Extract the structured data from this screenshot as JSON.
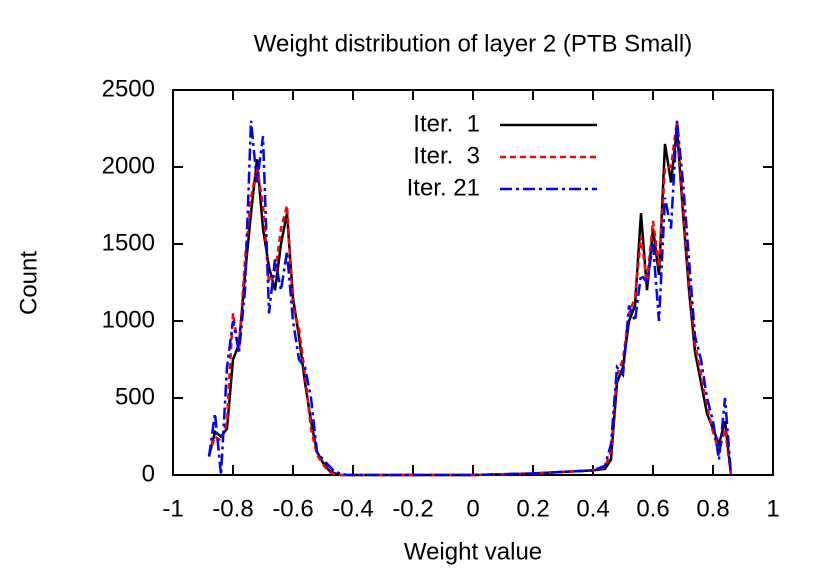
{
  "chart_data": {
    "type": "line",
    "title": "Weight distribution of layer 2 (PTB Small)",
    "xlabel": "Weight value",
    "ylabel": "Count",
    "x": [
      -0.88,
      -0.86,
      -0.84,
      -0.82,
      -0.8,
      -0.78,
      -0.76,
      -0.74,
      -0.72,
      -0.7,
      -0.68,
      -0.66,
      -0.64,
      -0.62,
      -0.6,
      -0.58,
      -0.56,
      -0.54,
      -0.52,
      -0.5,
      -0.48,
      -0.46,
      -0.44,
      -0.42,
      -0.4,
      0,
      0.1,
      0.2,
      0.3,
      0.4,
      0.44,
      0.46,
      0.48,
      0.5,
      0.52,
      0.54,
      0.56,
      0.58,
      0.6,
      0.62,
      0.64,
      0.66,
      0.68,
      0.7,
      0.72,
      0.74,
      0.76,
      0.78,
      0.8,
      0.82,
      0.84,
      0.86
    ],
    "series": [
      {
        "name": "Iter.  1",
        "color": "#000000",
        "dash": "solid",
        "values": [
          120,
          280,
          250,
          300,
          750,
          850,
          1300,
          1700,
          2050,
          1600,
          1350,
          1200,
          1500,
          1700,
          1150,
          900,
          600,
          350,
          150,
          80,
          30,
          10,
          0,
          0,
          0,
          0,
          5,
          10,
          20,
          30,
          40,
          100,
          600,
          700,
          1000,
          1100,
          1700,
          1200,
          1600,
          1300,
          2150,
          1900,
          2250,
          1700,
          1200,
          800,
          600,
          400,
          300,
          200,
          350,
          0
        ]
      },
      {
        "name": "Iter.  3",
        "color": "#ff0000",
        "dash": "dashed",
        "values": [
          130,
          250,
          220,
          350,
          1050,
          800,
          1400,
          1800,
          2000,
          1750,
          1250,
          1300,
          1600,
          1750,
          1100,
          950,
          650,
          300,
          130,
          70,
          20,
          5,
          0,
          0,
          0,
          0,
          5,
          10,
          20,
          30,
          50,
          150,
          650,
          750,
          1050,
          1150,
          1550,
          1250,
          1650,
          1350,
          2000,
          2000,
          2300,
          1750,
          1250,
          850,
          650,
          450,
          280,
          150,
          300,
          0
        ]
      },
      {
        "name": "Iter. 21",
        "color": "#0000ff",
        "dash": "dashdot",
        "values": [
          120,
          400,
          0,
          700,
          1000,
          800,
          1200,
          2300,
          1900,
          2200,
          1050,
          1400,
          1200,
          1450,
          1000,
          750,
          700,
          500,
          150,
          100,
          60,
          20,
          10,
          0,
          0,
          0,
          5,
          10,
          20,
          30,
          60,
          200,
          700,
          650,
          1100,
          1000,
          1300,
          1250,
          1500,
          1000,
          1800,
          1600,
          2300,
          1900,
          1400,
          900,
          750,
          500,
          350,
          100,
          500,
          0
        ]
      }
    ],
    "xlim": [
      -1,
      1
    ],
    "xticks": [
      -1,
      -0.8,
      -0.6,
      -0.4,
      -0.2,
      0,
      0.2,
      0.4,
      0.6,
      0.8,
      1
    ],
    "ylim": [
      0,
      2500
    ],
    "yticks": [
      0,
      500,
      1000,
      1500,
      2000,
      2500
    ],
    "grid": false,
    "legend": "top"
  }
}
